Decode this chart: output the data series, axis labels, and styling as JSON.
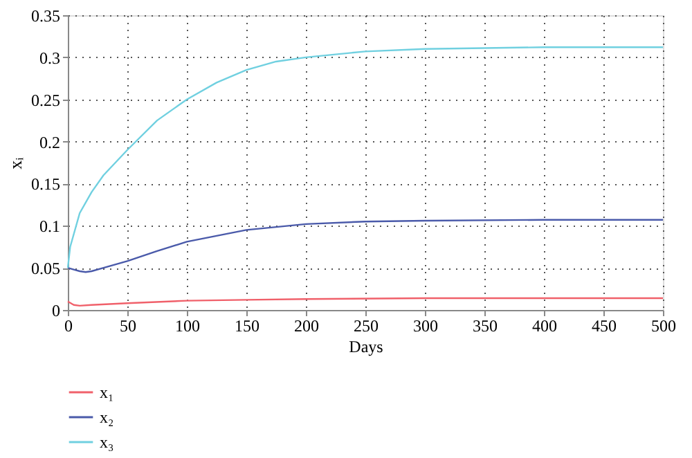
{
  "chart_data": {
    "type": "line",
    "xlabel": "Days",
    "ylabel": "xᵢ",
    "xlim": [
      0,
      500
    ],
    "xticks": [
      0,
      50,
      100,
      150,
      200,
      250,
      300,
      350,
      400,
      450,
      500
    ],
    "ylim": [
      0,
      0.35
    ],
    "yticks": [
      0,
      0.05,
      0.1,
      0.15,
      0.2,
      0.25,
      0.3,
      0.35
    ],
    "grid": true,
    "line_style": "solid",
    "marker": "none",
    "legend": "bottom",
    "series": [
      {
        "name": "x₁",
        "color": "#f0606a",
        "x": [
          0,
          5,
          10,
          20,
          50,
          100,
          150,
          200,
          300,
          400,
          500
        ],
        "values": [
          0.01,
          0.006,
          0.005,
          0.006,
          0.008,
          0.011,
          0.012,
          0.013,
          0.014,
          0.014,
          0.014
        ]
      },
      {
        "name": "x₂",
        "color": "#4a5aaa",
        "x": [
          0,
          5,
          10,
          15,
          20,
          30,
          50,
          75,
          100,
          150,
          200,
          250,
          300,
          400,
          500
        ],
        "values": [
          0.05,
          0.048,
          0.046,
          0.045,
          0.046,
          0.05,
          0.058,
          0.07,
          0.081,
          0.095,
          0.102,
          0.105,
          0.106,
          0.107,
          0.107
        ]
      },
      {
        "name": "x₃",
        "color": "#70d0e0",
        "x": [
          0,
          2,
          5,
          10,
          20,
          30,
          50,
          75,
          100,
          125,
          150,
          175,
          200,
          250,
          300,
          350,
          400,
          500
        ],
        "values": [
          0.05,
          0.075,
          0.09,
          0.115,
          0.14,
          0.16,
          0.19,
          0.225,
          0.25,
          0.27,
          0.285,
          0.295,
          0.3,
          0.307,
          0.31,
          0.311,
          0.312,
          0.312
        ]
      }
    ]
  }
}
